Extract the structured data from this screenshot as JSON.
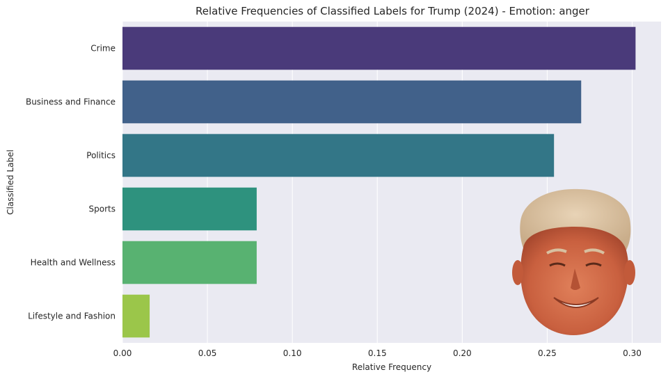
{
  "chart_data": {
    "type": "bar",
    "orientation": "horizontal",
    "title": "Relative Frequencies of Classified Labels for Trump (2024) - Emotion: anger",
    "xlabel": "Relative Frequency",
    "ylabel": "Classified Label",
    "categories": [
      "Crime",
      "Business and Finance",
      "Politics",
      "Sports",
      "Health and Wellness",
      "Lifestyle and Fashion"
    ],
    "values": [
      0.302,
      0.27,
      0.254,
      0.079,
      0.079,
      0.016
    ],
    "colors": [
      "#4a3a7a",
      "#41618a",
      "#337687",
      "#2e927e",
      "#58b271",
      "#9bc64a"
    ],
    "xlim": [
      0,
      0.317
    ],
    "xticks": [
      "0.00",
      "0.05",
      "0.10",
      "0.15",
      "0.20",
      "0.25",
      "0.30"
    ],
    "grid": true,
    "background": "#eaeaf2",
    "overlay": "face-photo"
  }
}
